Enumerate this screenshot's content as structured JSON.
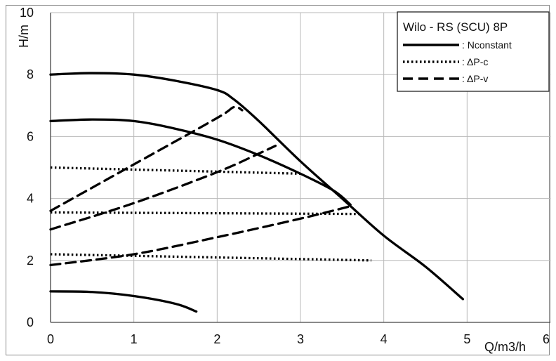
{
  "chart_data": {
    "type": "line",
    "title": "",
    "xlabel": "Q/m3/h",
    "ylabel": "H/m",
    "xlim": [
      0,
      6
    ],
    "ylim": [
      0,
      10
    ],
    "x_ticks": [
      "0",
      "1",
      "2",
      "3",
      "4",
      "5",
      "6"
    ],
    "y_ticks": [
      "0",
      "2",
      "4",
      "6",
      "8",
      "10"
    ],
    "grid": true,
    "legend": {
      "title": "Wilo - RS (SCU) 8P",
      "position": "top-right",
      "entries": [
        {
          "label": ": Nconstant",
          "style": "solid"
        },
        {
          "label": ": ΔP-c",
          "style": "dotted"
        },
        {
          "label": ": ΔP-v",
          "style": "dashed"
        }
      ]
    },
    "series": [
      {
        "style": "solid",
        "points": [
          [
            0,
            8.0
          ],
          [
            0.5,
            8.05
          ],
          [
            1.0,
            8.0
          ],
          [
            1.5,
            7.8
          ],
          [
            2.0,
            7.5
          ],
          [
            2.2,
            7.2
          ],
          [
            2.5,
            6.5
          ],
          [
            3.0,
            5.2
          ],
          [
            3.5,
            4.0
          ],
          [
            4.0,
            2.8
          ],
          [
            4.5,
            1.8
          ],
          [
            4.95,
            0.75
          ]
        ]
      },
      {
        "style": "solid",
        "points": [
          [
            0,
            6.5
          ],
          [
            0.5,
            6.55
          ],
          [
            1.0,
            6.5
          ],
          [
            1.5,
            6.25
          ],
          [
            2.0,
            5.9
          ],
          [
            2.5,
            5.4
          ],
          [
            3.0,
            4.8
          ],
          [
            3.4,
            4.25
          ],
          [
            3.6,
            3.8
          ]
        ]
      },
      {
        "style": "solid",
        "points": [
          [
            0,
            1.0
          ],
          [
            0.5,
            0.98
          ],
          [
            1.0,
            0.85
          ],
          [
            1.5,
            0.6
          ],
          [
            1.75,
            0.35
          ]
        ]
      },
      {
        "style": "dotted",
        "points": [
          [
            0,
            5.0
          ],
          [
            3.0,
            4.8
          ]
        ]
      },
      {
        "style": "dotted",
        "points": [
          [
            0,
            3.55
          ],
          [
            3.7,
            3.5
          ]
        ]
      },
      {
        "style": "dotted",
        "points": [
          [
            0,
            2.2
          ],
          [
            3.85,
            2.0
          ]
        ]
      },
      {
        "style": "dashed",
        "points": [
          [
            0,
            3.6
          ],
          [
            1.0,
            5.1
          ],
          [
            2.0,
            6.6
          ],
          [
            2.2,
            6.95
          ],
          [
            2.3,
            6.85
          ]
        ]
      },
      {
        "style": "dashed",
        "points": [
          [
            0,
            3.0
          ],
          [
            1.0,
            3.85
          ],
          [
            2.0,
            4.85
          ],
          [
            2.5,
            5.45
          ],
          [
            2.7,
            5.7
          ]
        ]
      },
      {
        "style": "dashed",
        "points": [
          [
            0,
            1.85
          ],
          [
            1.0,
            2.2
          ],
          [
            2.0,
            2.75
          ],
          [
            3.0,
            3.35
          ],
          [
            3.6,
            3.75
          ]
        ]
      }
    ]
  }
}
